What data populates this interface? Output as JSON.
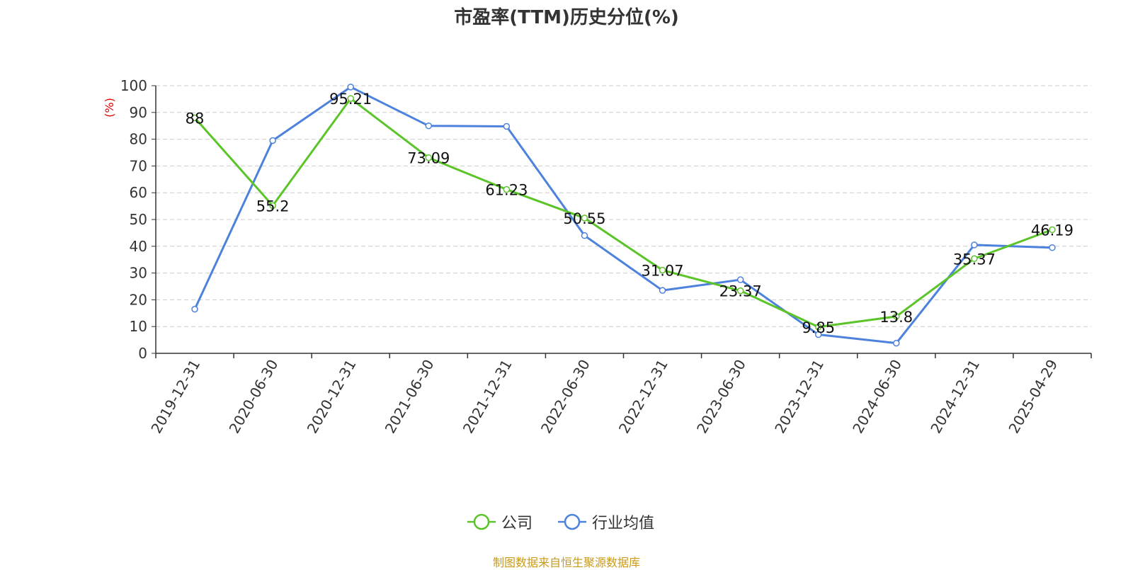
{
  "chart_data": {
    "type": "line",
    "title": "市盈率(TTM)历史分位(%)",
    "ylabel": "(%)",
    "xlabel": "",
    "ylim": [
      0,
      100
    ],
    "yticks": [
      0,
      10,
      20,
      30,
      40,
      50,
      60,
      70,
      80,
      90,
      100
    ],
    "grid": true,
    "legend_position": "bottom-center",
    "categories": [
      "2019-12-31",
      "2020-06-30",
      "2020-12-31",
      "2021-06-30",
      "2021-12-31",
      "2022-06-30",
      "2022-12-31",
      "2023-06-30",
      "2023-12-31",
      "2024-06-30",
      "2024-12-31",
      "2025-04-29"
    ],
    "series": [
      {
        "name": "公司",
        "color": "#5ac428",
        "values": [
          88,
          55.2,
          95.21,
          73.09,
          61.23,
          50.55,
          31.07,
          23.37,
          9.85,
          13.8,
          35.37,
          46.19
        ],
        "labels": [
          "88",
          "55.2",
          "95.21",
          "73.09",
          "61.23",
          "50.55",
          "31.07",
          "23.37",
          "9.85",
          "13.8",
          "35.37",
          "46.19"
        ]
      },
      {
        "name": "行业均值",
        "color": "#4d82dc",
        "values": [
          16.5,
          79.5,
          99.5,
          85.0,
          84.8,
          44.0,
          23.5,
          27.5,
          7.0,
          3.8,
          40.5,
          39.5
        ]
      }
    ]
  },
  "source": "制图数据来自恒生聚源数据库"
}
